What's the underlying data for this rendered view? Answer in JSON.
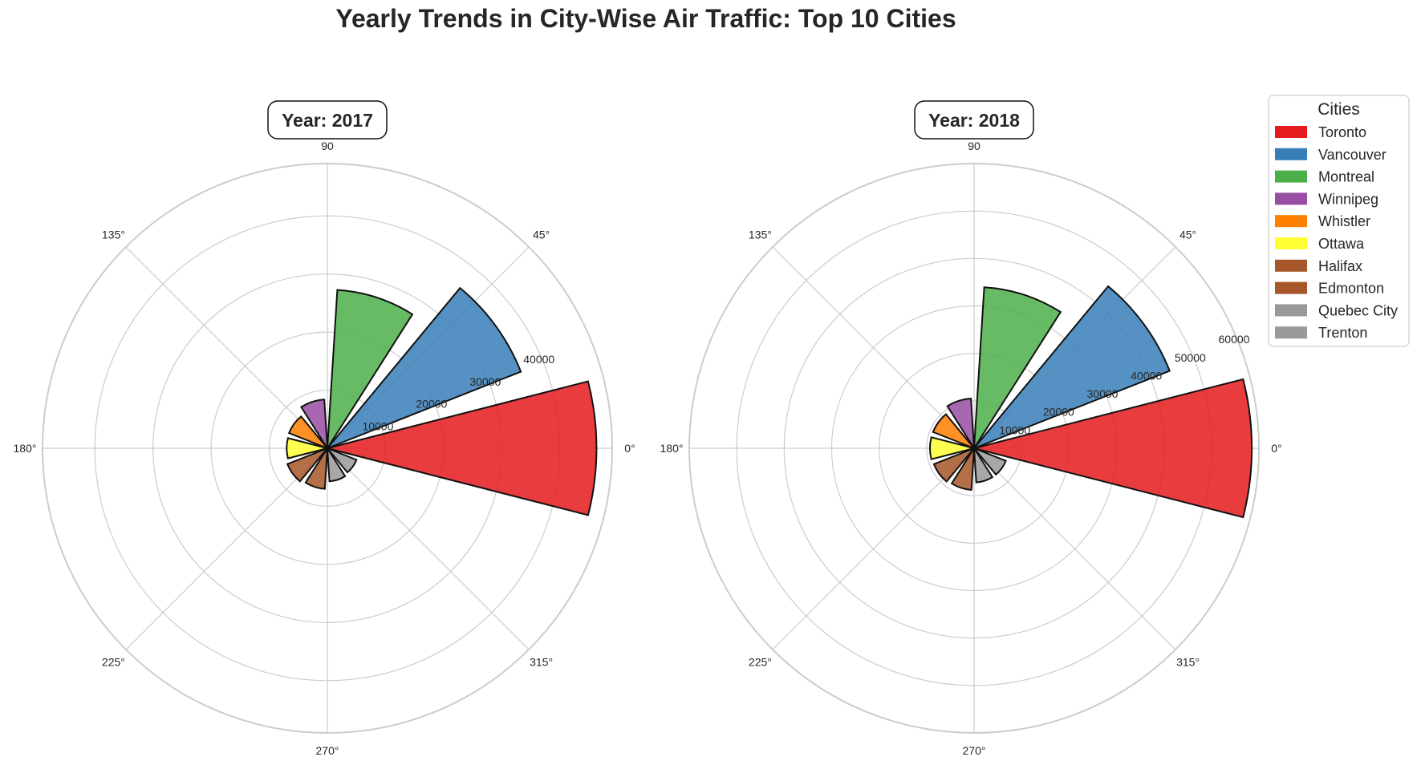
{
  "chart_data": {
    "title": "Yearly Trends in City-Wise Air Traffic: Top 10 Cities",
    "type": "polar-bar",
    "categories": [
      "Toronto",
      "Vancouver",
      "Montreal",
      "Winnipeg",
      "Whistler",
      "Ottawa",
      "Halifax",
      "Edmonton",
      "Quebec City",
      "Trenton"
    ],
    "colors": [
      "#e41a1c",
      "#377eb8",
      "#4daf4a",
      "#984ea3",
      "#ff7f00",
      "#ffff33",
      "#a65628",
      "#a65628",
      "#999999",
      "#999999"
    ],
    "angle_tick_labels": [
      "0°",
      "45°",
      "90",
      "135°",
      "180°",
      "225°",
      "270°",
      "315°"
    ],
    "legend": {
      "title": "Cities",
      "placement": "upper right, outside"
    },
    "panels": [
      {
        "title": "Year: 2017",
        "rmax": 49000,
        "r_ticks": [
          10000,
          20000,
          30000,
          40000
        ],
        "r_tick_labels": [
          "10000",
          "20000",
          "30000",
          "40000"
        ],
        "values": [
          46300,
          35800,
          27300,
          8400,
          7100,
          7000,
          7400,
          7000,
          5700,
          5400
        ]
      },
      {
        "title": "Year: 2018",
        "rmax": 60000,
        "r_ticks": [
          10000,
          20000,
          30000,
          40000,
          50000,
          60000
        ],
        "r_tick_labels": [
          "10000",
          "20000",
          "30000",
          "40000",
          "50000",
          "60000"
        ],
        "values": [
          58500,
          44300,
          34000,
          10500,
          9300,
          9300,
          9100,
          8800,
          7200,
          7200
        ]
      }
    ]
  }
}
